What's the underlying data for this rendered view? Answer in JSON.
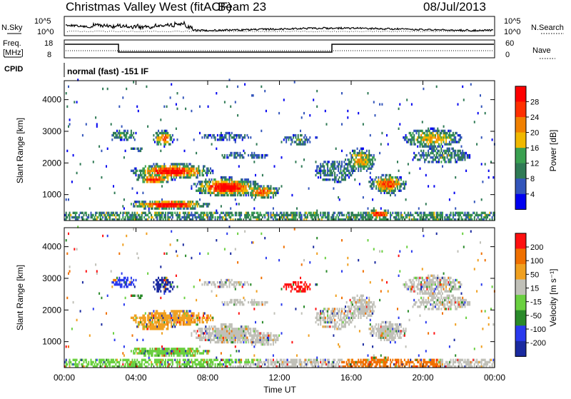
{
  "header": {
    "station": "Christmas Valley West (fitACF)",
    "beam": "Beam 23",
    "date": "08/Jul/2013"
  },
  "noise_panel": {
    "left_label": "N.Sky",
    "right_label": "N.Search",
    "left_ticks": [
      "10^5",
      "10^0"
    ],
    "right_ticks": [
      "10^5",
      "10^0"
    ]
  },
  "freq_panel": {
    "left_label_line1": "Freq.",
    "left_label_line2": "[MHz]",
    "right_label": "Nave",
    "left_ticks": [
      "18",
      "8"
    ],
    "right_ticks": [
      "60",
      "0"
    ]
  },
  "cpid": {
    "label": "CPID",
    "value": "normal (fast) -151 IF"
  },
  "chart_data": [
    {
      "type": "heatmap",
      "name": "power",
      "ylabel": "Slant Range [km]",
      "yticks": [
        1000,
        2000,
        3000,
        4000
      ],
      "ylim": [
        180,
        4600
      ],
      "xlim": [
        0,
        24
      ],
      "colorbar_label": "Power [dB]",
      "colorbar_ticks": [
        "28",
        "24",
        "20",
        "16",
        "12",
        "8",
        "4"
      ],
      "colors": [
        "#0000f0",
        "#3355bb",
        "#2f7a55",
        "#3aa050",
        "#f0b800",
        "#f08000",
        "#ff3000",
        "#ff0000"
      ]
    },
    {
      "type": "heatmap",
      "name": "velocity",
      "ylabel": "Slant Range [km]",
      "yticks": [
        1000,
        2000,
        3000,
        4000
      ],
      "ylim": [
        180,
        4600
      ],
      "xlim": [
        0,
        24
      ],
      "xlabel": "Time UT",
      "xticks": [
        "00:00",
        "04:00",
        "08:00",
        "12:00",
        "16:00",
        "20:00",
        "00:00"
      ],
      "colorbar_label": "Velocity [m s⁻¹]",
      "colorbar_ticks": [
        "200",
        "100",
        "50",
        "15",
        "-15",
        "-50",
        "-100",
        "-200"
      ],
      "colors": [
        "#1a2aa0",
        "#2a3aee",
        "#2a8a2a",
        "#6ad040",
        "#c0c0b8",
        "#f0a020",
        "#f07000",
        "#ff1010"
      ]
    }
  ]
}
